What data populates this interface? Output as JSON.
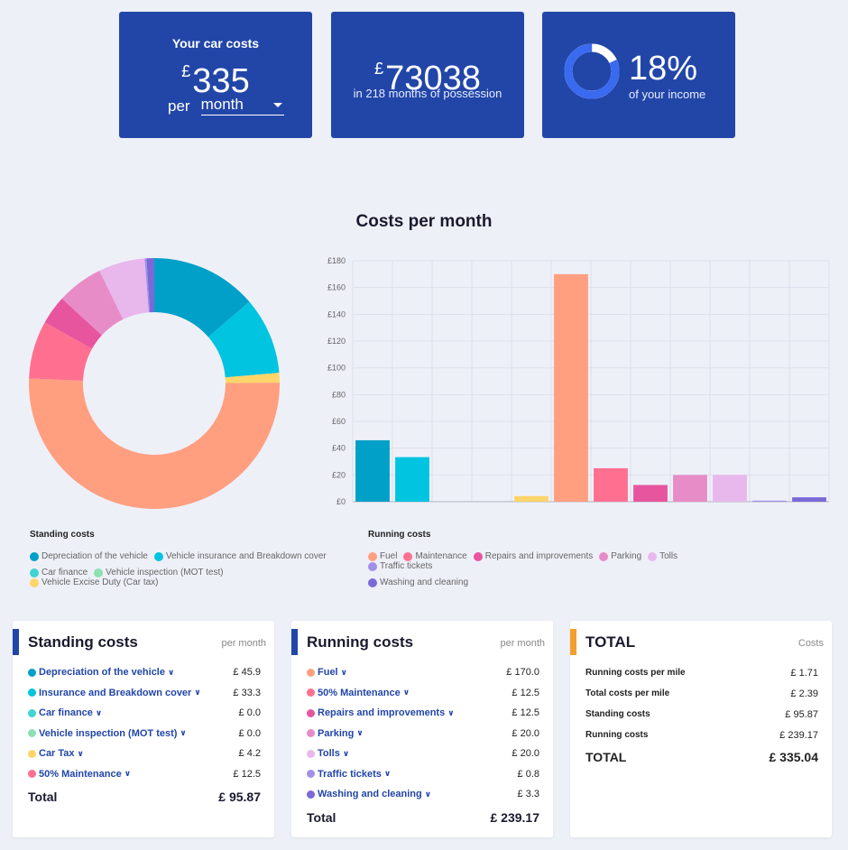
{
  "summary": {
    "cost_title": "Your car costs",
    "currency": "£",
    "monthly_amount": "335",
    "per_label": "per",
    "period_select": "month",
    "total_amount": "73038",
    "possession_text": "in 218 months of possession",
    "income_percent": "18%",
    "income_fraction": 0.18,
    "income_text": "of your income"
  },
  "colors": {
    "card_bg": "#2246a8",
    "ring_track": "#ffffff",
    "ring_fill": "#3a6af0",
    "accent_blue": "#2246a8",
    "accent_orange": "#f0a030"
  },
  "chart_title": "Costs per month",
  "chart_data": [
    {
      "type": "pie",
      "title": "Costs per month",
      "categories": [
        "Depreciation of the vehicle",
        "Vehicle insurance and Breakdown cover",
        "Car finance",
        "Vehicle inspection (MOT test)",
        "Vehicle Excise Duty (Car tax)",
        "Fuel",
        "Maintenance",
        "Repairs and improvements",
        "Parking",
        "Tolls",
        "Traffic tickets",
        "Washing and cleaning"
      ],
      "values": [
        45.9,
        33.3,
        0.0,
        0.0,
        4.2,
        170.0,
        25.0,
        12.5,
        20.0,
        20.0,
        0.8,
        3.3
      ],
      "colors": [
        "#00a0c8",
        "#00c4e0",
        "#40d4d4",
        "#8ee0b4",
        "#ffd56a",
        "#ff9f80",
        "#ff7090",
        "#e8559f",
        "#e88cc8",
        "#e8b8ec",
        "#a090e8",
        "#7a6ad8"
      ]
    },
    {
      "type": "bar",
      "categories": [
        "Depreciation of the vehicle",
        "Vehicle insurance and Breakdown cover",
        "Car finance",
        "Vehicle inspection (MOT test)",
        "Vehicle Excise Duty (Car tax)",
        "Fuel",
        "Maintenance",
        "Repairs and improvements",
        "Parking",
        "Tolls",
        "Traffic tickets",
        "Washing and cleaning"
      ],
      "values": [
        45.9,
        33.3,
        0.0,
        0.0,
        4.2,
        170.0,
        25.0,
        12.5,
        20.0,
        20.0,
        0.8,
        3.3
      ],
      "colors": [
        "#00a0c8",
        "#00c4e0",
        "#40d4d4",
        "#8ee0b4",
        "#ffd56a",
        "#ff9f80",
        "#ff7090",
        "#e8559f",
        "#e88cc8",
        "#e8b8ec",
        "#a090e8",
        "#7a6ad8"
      ],
      "ylim": [
        0,
        180
      ],
      "yticks": [
        0,
        20,
        40,
        60,
        80,
        100,
        120,
        140,
        160,
        180
      ],
      "ytick_labels": [
        "£0",
        "£20",
        "£40",
        "£60",
        "£80",
        "£100",
        "£120",
        "£140",
        "£160",
        "£180"
      ],
      "grid": true
    }
  ],
  "legend": {
    "standing_title": "Standing costs",
    "standing": [
      {
        "label": "Depreciation of the vehicle",
        "color": "#00a0c8"
      },
      {
        "label": "Vehicle insurance and Breakdown cover",
        "color": "#00c4e0"
      },
      {
        "label": "Car finance",
        "color": "#40d4d4"
      },
      {
        "label": "Vehicle inspection (MOT test)",
        "color": "#8ee0b4"
      },
      {
        "label": "Vehicle Excise Duty (Car tax)",
        "color": "#ffd56a"
      }
    ],
    "running_title": "Running costs",
    "running": [
      {
        "label": "Fuel",
        "color": "#ff9f80"
      },
      {
        "label": "Maintenance",
        "color": "#ff7090"
      },
      {
        "label": "Repairs and improvements",
        "color": "#e8559f"
      },
      {
        "label": "Parking",
        "color": "#e88cc8"
      },
      {
        "label": "Tolls",
        "color": "#e8b8ec"
      },
      {
        "label": "Traffic tickets",
        "color": "#a090e8"
      },
      {
        "label": "Washing and cleaning",
        "color": "#7a6ad8"
      }
    ]
  },
  "standing_panel": {
    "title": "Standing costs",
    "period": "per month",
    "items": [
      {
        "label": "Depreciation of the vehicle",
        "value": "£ 45.9",
        "color": "#00a0c8"
      },
      {
        "label": "Insurance and Breakdown cover",
        "value": "£ 33.3",
        "color": "#00c4e0"
      },
      {
        "label": "Car finance",
        "value": "£ 0.0",
        "color": "#40d4d4"
      },
      {
        "label": "Vehicle inspection (MOT test)",
        "value": "£ 0.0",
        "color": "#8ee0b4"
      },
      {
        "label": "Car Tax",
        "value": "£ 4.2",
        "color": "#ffd56a"
      },
      {
        "label": "50% Maintenance",
        "value": "£ 12.5",
        "color": "#ff7090"
      }
    ],
    "total_label": "Total",
    "total_value": "£ 95.87"
  },
  "running_panel": {
    "title": "Running costs",
    "period": "per month",
    "items": [
      {
        "label": "Fuel",
        "value": "£ 170.0",
        "color": "#ff9f80"
      },
      {
        "label": "50% Maintenance",
        "value": "£ 12.5",
        "color": "#ff7090"
      },
      {
        "label": "Repairs and improvements",
        "value": "£ 12.5",
        "color": "#e8559f"
      },
      {
        "label": "Parking",
        "value": "£ 20.0",
        "color": "#e88cc8"
      },
      {
        "label": "Tolls",
        "value": "£ 20.0",
        "color": "#e8b8ec"
      },
      {
        "label": "Traffic tickets",
        "value": "£ 0.8",
        "color": "#a090e8"
      },
      {
        "label": "Washing and cleaning",
        "value": "£ 3.3",
        "color": "#7a6ad8"
      }
    ],
    "total_label": "Total",
    "total_value": "£ 239.17"
  },
  "total_panel": {
    "title": "TOTAL",
    "period": "Costs",
    "items": [
      {
        "label": "Running costs per mile",
        "value": "£ 1.71"
      },
      {
        "label": "Total costs per mile",
        "value": "£ 2.39"
      },
      {
        "label": "Standing costs",
        "value": "£ 95.87"
      },
      {
        "label": "Running costs",
        "value": "£ 239.17"
      }
    ],
    "total_label": "TOTAL",
    "total_value": "£ 335.04"
  }
}
